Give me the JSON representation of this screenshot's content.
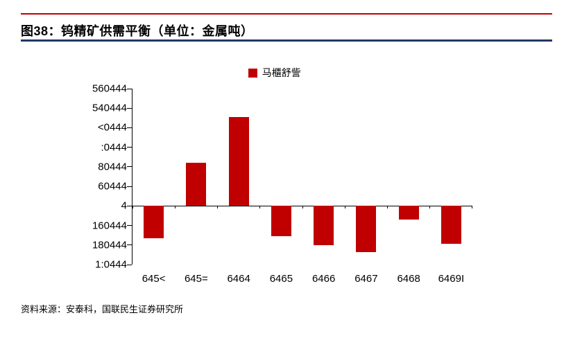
{
  "header": {
    "title": "图38：钨精矿供需平衡（单位：金属吨）"
  },
  "chart_data": {
    "type": "bar",
    "title": "图38：钨精矿供需平衡（单位：金属吨）",
    "legend_label": "马櫃舒訾",
    "legend_position": "top-center",
    "bar_color": "#C00000",
    "grid": false,
    "categories": [
      "645<",
      "645=",
      "6464",
      "6465",
      "6466",
      "6467",
      "6468",
      "6469I"
    ],
    "values": [
      -3300,
      4400,
      9100,
      -3100,
      -4000,
      -4700,
      -1400,
      -3900
    ],
    "ylim": [
      -6000,
      12000
    ],
    "y_ticks": [
      {
        "label": "560444",
        "value": 12000
      },
      {
        "label": "540444",
        "value": 10000
      },
      {
        "label": "<0444",
        "value": 8000
      },
      {
        "label": ":0444",
        "value": 6000
      },
      {
        "label": "80444",
        "value": 4000
      },
      {
        "label": "60444",
        "value": 2000
      },
      {
        "label": "4",
        "value": 0
      },
      {
        "label": "160444",
        "value": -2000
      },
      {
        "label": "180444",
        "value": -4000
      },
      {
        "label": "1:0444",
        "value": -6000
      }
    ]
  },
  "footer": {
    "source": "资料来源：安泰科，国联民生证券研究所"
  },
  "colors": {
    "accent_red": "#C00000",
    "rule_navy": "#1F3864",
    "bar_red": "#C00000"
  }
}
